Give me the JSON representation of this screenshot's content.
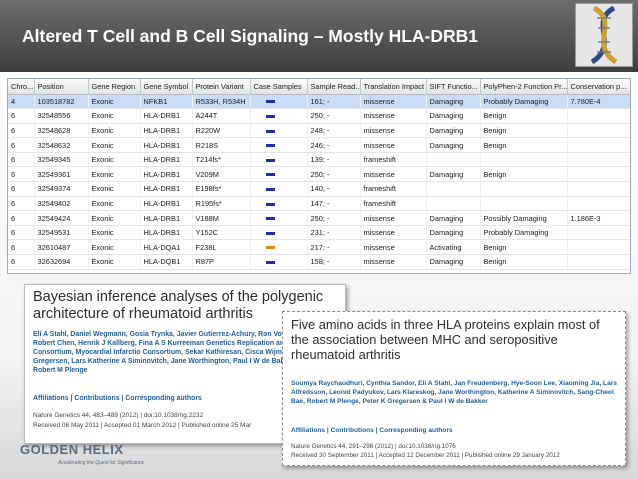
{
  "slide": {
    "title": "Altered T Cell and B Cell Signaling – Mostly HLA-DRB1"
  },
  "table": {
    "columns": [
      "Chro...",
      "Position",
      "Gene Region",
      "Gene Symbol",
      "Protein Variant",
      "Case Samples",
      "Sample Read...",
      "Translation Impact",
      "SIFT Functio...",
      "PolyPhen-2 Function Pr...",
      "Conservation p..."
    ],
    "swatch_colors": {
      "blue": "#1f2fa8",
      "orange": "#d98a1e"
    },
    "rows": [
      {
        "chrom": "4",
        "position": "103518782",
        "region": "Exonic",
        "gene": "NFKB1",
        "variant": "R533H, R534H",
        "swatch": "blue",
        "reads": "161; -",
        "impact": "missense",
        "sift": "Damaging",
        "polyphen": "Probably Damaging",
        "conservation": "7.780E-4",
        "selected": true
      },
      {
        "chrom": "6",
        "position": "32548556",
        "region": "Exonic",
        "gene": "HLA-DRB1",
        "variant": "A244T",
        "swatch": "blue",
        "reads": "250; -",
        "impact": "missense",
        "sift": "Damaging",
        "polyphen": "Benign",
        "conservation": ""
      },
      {
        "chrom": "6",
        "position": "32548628",
        "region": "Exonic",
        "gene": "HLA-DRB1",
        "variant": "R220W",
        "swatch": "blue",
        "reads": "248; -",
        "impact": "missense",
        "sift": "Damaging",
        "polyphen": "Benign",
        "conservation": ""
      },
      {
        "chrom": "6",
        "position": "32548632",
        "region": "Exonic",
        "gene": "HLA-DRB1",
        "variant": "R218S",
        "swatch": "blue",
        "reads": "246; -",
        "impact": "missense",
        "sift": "Damaging",
        "polyphen": "Benign",
        "conservation": ""
      },
      {
        "chrom": "6",
        "position": "32549345",
        "region": "Exonic",
        "gene": "HLA-DRB1",
        "variant": "T214fs*",
        "swatch": "blue",
        "reads": "139; -",
        "impact": "frameshift",
        "sift": "",
        "polyphen": "",
        "conservation": ""
      },
      {
        "chrom": "6",
        "position": "32549361",
        "region": "Exonic",
        "gene": "HLA-DRB1",
        "variant": "V209M",
        "swatch": "blue",
        "reads": "250; -",
        "impact": "missense",
        "sift": "Damaging",
        "polyphen": "Benign",
        "conservation": ""
      },
      {
        "chrom": "6",
        "position": "32549374",
        "region": "Exonic",
        "gene": "HLA-DRB1",
        "variant": "E198fs*",
        "swatch": "blue",
        "reads": "140; -",
        "impact": "frameshift",
        "sift": "",
        "polyphen": "",
        "conservation": ""
      },
      {
        "chrom": "6",
        "position": "32549402",
        "region": "Exonic",
        "gene": "HLA-DRB1",
        "variant": "R195fs*",
        "swatch": "blue",
        "reads": "147; -",
        "impact": "frameshift",
        "sift": "",
        "polyphen": "",
        "conservation": ""
      },
      {
        "chrom": "6",
        "position": "32549424",
        "region": "Exonic",
        "gene": "HLA-DRB1",
        "variant": "V188M",
        "swatch": "blue",
        "reads": "250; -",
        "impact": "missense",
        "sift": "Damaging",
        "polyphen": "Possibly Damaging",
        "conservation": "1.186E-3"
      },
      {
        "chrom": "6",
        "position": "32549531",
        "region": "Exonic",
        "gene": "HLA-DRB1",
        "variant": "Y152C",
        "swatch": "blue",
        "reads": "231; -",
        "impact": "missense",
        "sift": "Damaging",
        "polyphen": "Probably Damaging",
        "conservation": ""
      },
      {
        "chrom": "6",
        "position": "32610487",
        "region": "Exonic",
        "gene": "HLA-DQA1",
        "variant": "F238L",
        "swatch": "orange",
        "reads": "217; -",
        "impact": "missense",
        "sift": "Activating",
        "polyphen": "Benign",
        "conservation": ""
      },
      {
        "chrom": "6",
        "position": "32632694",
        "region": "Exonic",
        "gene": "HLA-DQB1",
        "variant": "R87P",
        "swatch": "blue",
        "reads": "158; -",
        "impact": "missense",
        "sift": "Damaging",
        "polyphen": "Benign",
        "conservation": ""
      }
    ]
  },
  "article1": {
    "title": "Bayesian inference analyses of the polygenic architecture of rheumatoid arthritis",
    "authors": "Eli A Stahl, Daniel Wegmann, Gosia Trynka, Javier Gutierrez-Achury, Ron Voight, Peter Kraft, Robert Chen, Henrik J Kallberg, Fina A S Kurreeman Genetics Replication and Meta-analysis Consortium, Myocardial Infarctio Consortium, Sekar Kathiresan, Cisca Wijmenga, Peter K Gregersen, Lars Katherine A Siminovitch, Jane Worthington, Paul I W de Bakker, Soumya Robert M Plenge",
    "links": "Affiliations | Contributions | Corresponding authors",
    "journal": "Nature Genetics 44, 483–489 (2012) | doi:10.1038/ng.2232",
    "dates": "Received 06 May 2011 | Accepted 01 March 2012 | Published online 25 Mar"
  },
  "article2": {
    "title": "Five amino acids in three HLA proteins explain most of the association between MHC and seropositive rheumatoid arthritis",
    "authors": "Soumya Raychaudhuri, Cynthia Sandor, Eli A Stahl, Jan Freudenberg, Hye-Soon Lee, Xiaoming Jia, Lars Alfredsson, Leonid Padyukov, Lars Klareskog, Jane Worthington, Katherine A Siminovitch, Sang-Cheol Bae, Robert M Plenge, Peter K Gregersen & Paul I W de Bakker",
    "links": "Affiliations | Contributions | Corresponding authors",
    "journal": "Nature Genetics 44, 291–296 (2012) | doi:10.1038/ng.1076",
    "dates": "Received 30 September 2011 | Accepted 12 December 2011 | Published online 29 January 2012"
  },
  "footer": {
    "logo_text": "GOLDEN HELIX",
    "tagline": "Accelerating the Quest for Significance"
  }
}
